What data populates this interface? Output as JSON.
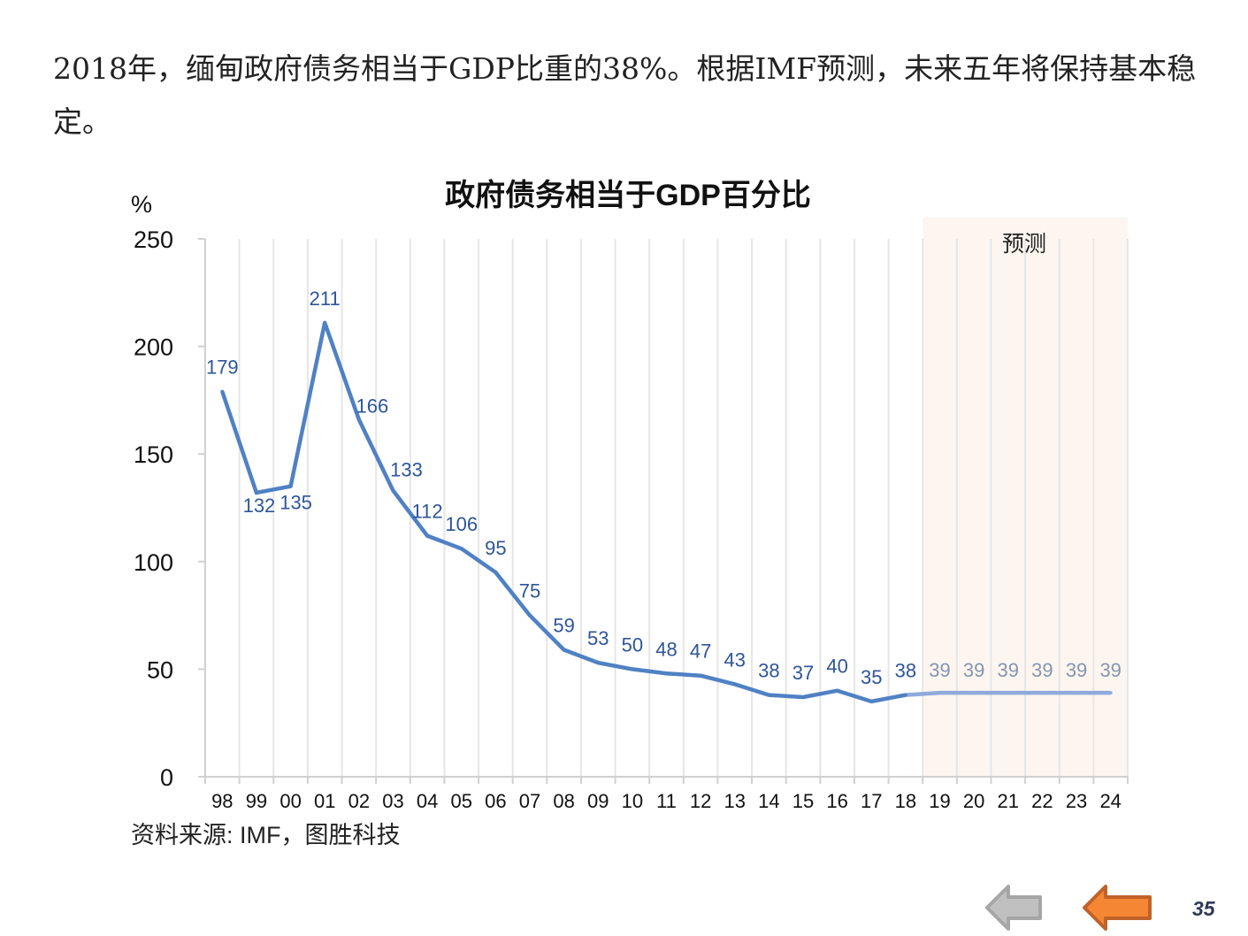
{
  "headline": "2018年，缅甸政府债务相当于GDP比重的38%。根据IMF预测，未来五年将保持基本稳定。",
  "source": "资料来源: IMF，图胜科技",
  "page_number": "35",
  "nav": {
    "prev_icon": "gray-left-arrow-icon",
    "back_icon": "orange-left-arrow-icon"
  },
  "colors": {
    "line": "#4f81c4",
    "forecast_line": "#8faadc",
    "label": "#2e5597",
    "forecast_label": "#8496b0",
    "forecast_bg": "#fdf5ef"
  },
  "chart_data": {
    "type": "line",
    "title": "政府债务相当于GDP百分比",
    "ylabel": "%",
    "xlabel": "",
    "ylim": [
      0,
      250
    ],
    "yticks": [
      "0",
      "50",
      "100",
      "150",
      "200",
      "250"
    ],
    "categories": [
      "98",
      "99",
      "00",
      "01",
      "02",
      "03",
      "04",
      "05",
      "06",
      "07",
      "08",
      "09",
      "10",
      "11",
      "12",
      "13",
      "14",
      "15",
      "16",
      "17",
      "18",
      "19",
      "20",
      "21",
      "22",
      "23",
      "24"
    ],
    "values": [
      179,
      132,
      135,
      211,
      166,
      133,
      112,
      106,
      95,
      75,
      59,
      53,
      50,
      48,
      47,
      43,
      38,
      37,
      40,
      35,
      38,
      39,
      39,
      39,
      39,
      39,
      39
    ],
    "forecast_start": "19",
    "forecast_label": "预测",
    "grid": "vertical"
  }
}
